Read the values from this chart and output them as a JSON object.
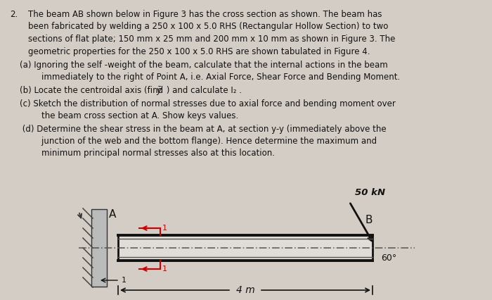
{
  "background_color": "#d4cdc5",
  "text_color": "#111111",
  "para_lines": [
    "The beam AB shown below in Figure 3 has the cross section as shown. The beam has",
    "been fabricated by welding a 250 x 100 x 5.0 RHS (Rectangular Hollow Section) to two",
    "sections of flat plate; 150 mm x 25 mm and 200 mm x 10 mm as shown in Figure 3. The",
    "geometric properties for the 250 x 100 x 5.0 RHS are shown tabulated in Figure 4."
  ],
  "sub_a_line1": "(a) Ignoring the self -weight of the beam, calculate that the internal actions in the beam",
  "sub_a_line2": "    immediately to the right of Point A, i.e. Axial Force, Shear Force and Bending Moment.",
  "sub_b_pre": "(b) Locate the centroidal axis (find ",
  "sub_b_post": " ) and calculate I₂ .",
  "sub_c_line1": "(c) Sketch the distribution of normal stresses due to axial force and bending moment over",
  "sub_c_line2": "    the beam cross section at A. Show keys values.",
  "sub_d_line1": " (d) Determine the shear stress in the beam at A, at section y-y (immediately above the",
  "sub_d_line2": "    junction of the web and the bottom flange). Hence determine the maximum and",
  "sub_d_line3": "    minimum principal normal stresses also at this location.",
  "red_color": "#cc0000",
  "beam_color": "#111111",
  "wall_hatch_color": "#444444",
  "dash_color": "#555555",
  "force_label": "50 kN",
  "angle_label": "60°",
  "dim_label": "4 m",
  "label_A": "A",
  "label_B": "B"
}
